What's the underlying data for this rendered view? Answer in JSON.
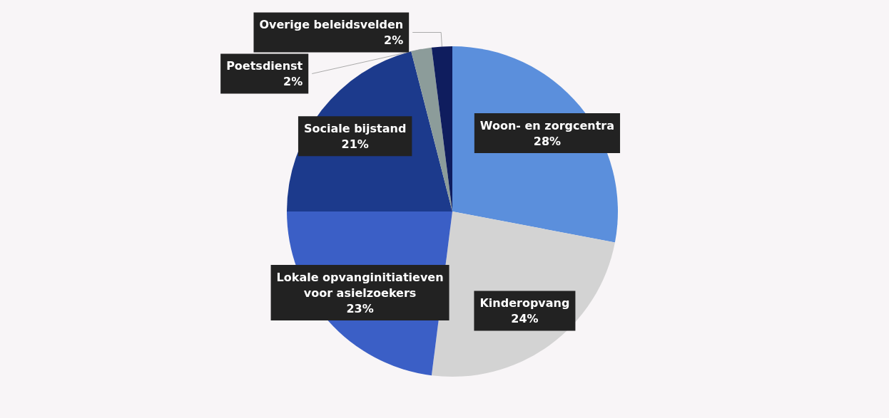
{
  "chart_data": {
    "type": "pie",
    "categories": [
      "Woon- en zorgcentra",
      "Kinderopvang",
      "Lokale opvanginitiatieven\nvoor asielzoekers",
      "Sociale bijstand",
      "Poetsdienst",
      "Overige beleidsvelden"
    ],
    "values": [
      28,
      24,
      23,
      21,
      2,
      2
    ],
    "colors": [
      "#5b8fdc",
      "#d3d3d3",
      "#3b5fc6",
      "#1c3a8c",
      "#8c9c9a",
      "#0f1d5e"
    ],
    "value_labels": [
      "28%",
      "24%",
      "23%",
      "21%",
      "2%",
      "2%"
    ]
  }
}
